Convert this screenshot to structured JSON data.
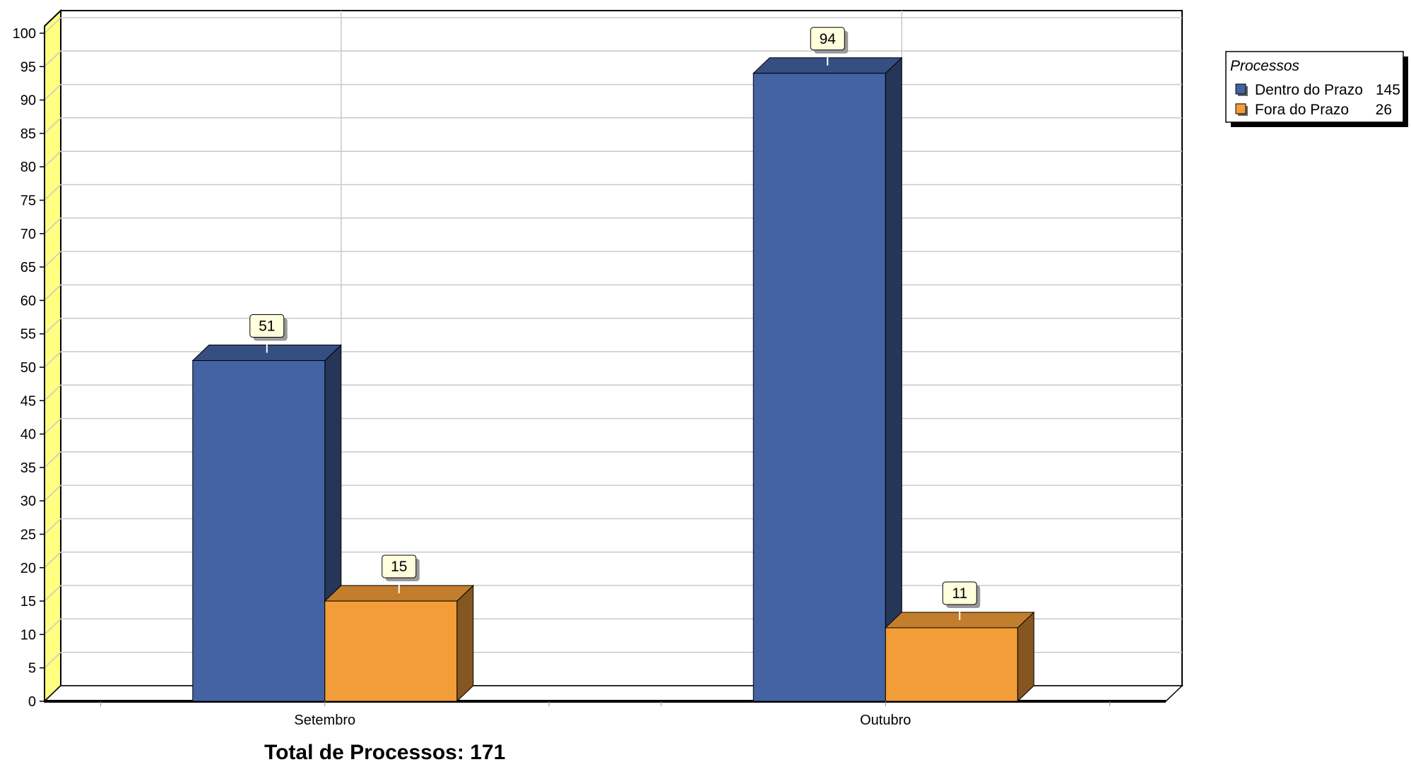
{
  "chart_data": {
    "type": "bar",
    "categories": [
      "Setembro",
      "Outubro"
    ],
    "series": [
      {
        "name": "Dentro do Prazo",
        "values": [
          51,
          94
        ],
        "color": "#4363A2",
        "total": "145"
      },
      {
        "name": "Fora do Prazo",
        "values": [
          15,
          11
        ],
        "color": "#F29D38",
        "total": "26"
      }
    ],
    "ylim": [
      0,
      100
    ],
    "ytick_step": 5,
    "grid": true,
    "legend_title": "Processos",
    "legend_position": "top-right",
    "footer": "Total de Processos: 171",
    "axis_wall_color": "#FFFF80",
    "label_box_color": "#FFFFDD"
  }
}
